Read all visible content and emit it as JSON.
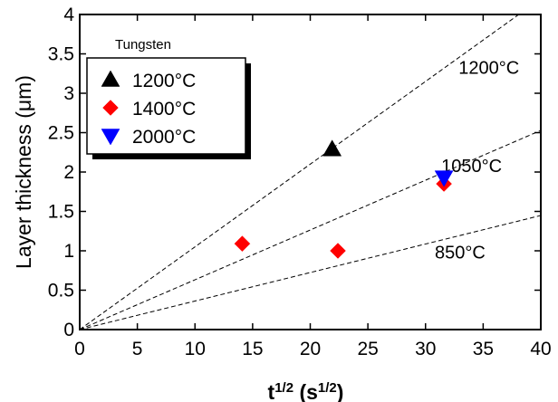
{
  "chart_data": {
    "type": "scatter",
    "xlabel_base": "t",
    "xlabel_exp": "1/2",
    "xlabel_unit_base": "(s",
    "xlabel_unit_exp": "1/2",
    "xlabel_unit_close": ")",
    "ylabel": "Layer thickness (μm)",
    "xlim": [
      0,
      40
    ],
    "ylim": [
      0,
      4
    ],
    "xticks": [
      0,
      5,
      10,
      15,
      20,
      25,
      30,
      35,
      40
    ],
    "yticks": [
      0,
      0.5,
      1,
      1.5,
      2,
      2.5,
      3,
      3.5,
      4
    ],
    "xtick_labels": [
      "0",
      "5",
      "10",
      "15",
      "20",
      "25",
      "30",
      "35",
      "40"
    ],
    "ytick_labels": [
      "0",
      "0.5",
      "1",
      "1.5",
      "2",
      "2.5",
      "3",
      "3.5",
      "4"
    ],
    "grid": false,
    "legend": {
      "title": "Tungsten",
      "position": "top-left",
      "entries": [
        {
          "label": "1200°C",
          "marker": "triangle-up",
          "color": "#000000"
        },
        {
          "label": "1400°C",
          "marker": "diamond",
          "color": "#ff0000"
        },
        {
          "label": "2000°C",
          "marker": "triangle-down",
          "color": "#0000ff"
        }
      ]
    },
    "series": [
      {
        "name": "1200°C",
        "marker": "triangle-up",
        "color": "#000000",
        "points": [
          [
            21.9,
            2.29
          ]
        ]
      },
      {
        "name": "1400°C",
        "marker": "diamond",
        "color": "#ff0000",
        "points": [
          [
            14.1,
            1.09
          ],
          [
            22.4,
            1.0
          ],
          [
            31.6,
            1.85
          ]
        ]
      },
      {
        "name": "2000°C",
        "marker": "triangle-down",
        "color": "#0000ff",
        "points": [
          [
            31.6,
            1.93
          ]
        ]
      }
    ],
    "fit_lines": [
      {
        "label": "1200°C",
        "slope": 0.105
      },
      {
        "label": "1050°C",
        "slope": 0.0632
      },
      {
        "label": "850°C",
        "slope": 0.0362
      }
    ]
  }
}
